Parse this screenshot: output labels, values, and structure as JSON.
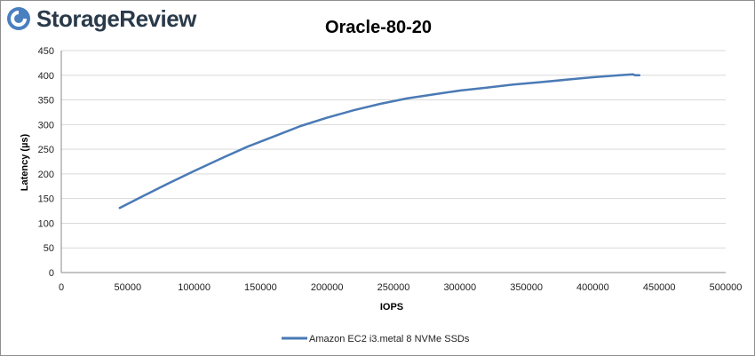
{
  "brand": {
    "name": "StorageReview",
    "icon": "storagereview-logo-icon",
    "color": "#4a7fc0"
  },
  "chart_data": {
    "type": "line",
    "title": "Oracle-80-20",
    "xlabel": "IOPS",
    "ylabel": "Latency (µs)",
    "xlim": [
      0,
      500000
    ],
    "ylim": [
      0,
      450
    ],
    "xticks": [
      0,
      50000,
      100000,
      150000,
      200000,
      250000,
      300000,
      350000,
      400000,
      450000,
      500000
    ],
    "yticks": [
      0,
      50,
      100,
      150,
      200,
      250,
      300,
      350,
      400,
      450
    ],
    "grid": true,
    "legend_position": "bottom",
    "series": [
      {
        "name": "Amazon EC2 i3.metal 8 NVMe SSDs",
        "color": "#4a7ab5",
        "x": [
          44000,
          60000,
          80000,
          100000,
          120000,
          140000,
          160000,
          180000,
          200000,
          220000,
          240000,
          260000,
          280000,
          300000,
          320000,
          340000,
          360000,
          380000,
          400000,
          420000,
          430000,
          432000,
          435000
        ],
        "y": [
          131,
          153,
          180,
          206,
          231,
          255,
          276,
          297,
          314,
          329,
          342,
          353,
          361,
          369,
          375,
          381,
          386,
          391,
          396,
          400,
          402,
          400,
          400
        ]
      }
    ]
  }
}
